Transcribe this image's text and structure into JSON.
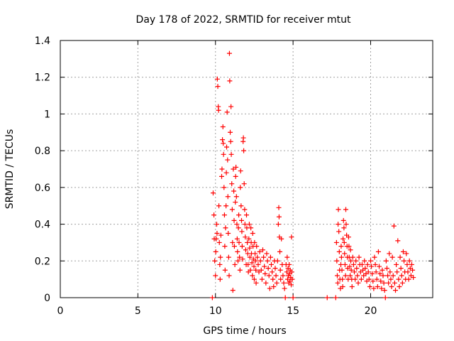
{
  "chart_data": {
    "type": "scatter",
    "title": "Day 178 of 2022, SRMTID for receiver mtut",
    "xlabel": "GPS time / hours",
    "ylabel": "SRMTID / TECUs",
    "xlim": [
      0,
      24
    ],
    "ylim": [
      0,
      1.4
    ],
    "xticks": [
      0,
      5,
      10,
      15,
      20
    ],
    "xtick_labels": [
      "0",
      "5",
      "10",
      "15",
      "20"
    ],
    "yticks": [
      0,
      0.2,
      0.4,
      0.6,
      0.8,
      1.0,
      1.2,
      1.4
    ],
    "ytick_labels": [
      "0",
      "0.2",
      "0.4",
      "0.6",
      "0.8",
      "1",
      "1.2",
      "1.4"
    ],
    "grid": true,
    "marker": "plus",
    "color": "#ff0000",
    "series": [
      {
        "name": "SRMTID",
        "points": [
          [
            9.8,
            0.0
          ],
          [
            9.85,
            0.57
          ],
          [
            9.9,
            0.45
          ],
          [
            9.92,
            0.32
          ],
          [
            9.95,
            0.2
          ],
          [
            10.0,
            0.12
          ],
          [
            10.02,
            0.25
          ],
          [
            10.05,
            0.32
          ],
          [
            10.08,
            0.4
          ],
          [
            10.1,
            0.35
          ],
          [
            10.12,
            1.19
          ],
          [
            10.15,
            1.15
          ],
          [
            10.18,
            1.04
          ],
          [
            10.2,
            1.02
          ],
          [
            10.22,
            0.5
          ],
          [
            10.25,
            0.3
          ],
          [
            10.28,
            0.18
          ],
          [
            10.3,
            0.1
          ],
          [
            10.32,
            0.22
          ],
          [
            10.35,
            0.34
          ],
          [
            10.4,
            0.66
          ],
          [
            10.42,
            0.7
          ],
          [
            10.45,
            0.86
          ],
          [
            10.48,
            0.93
          ],
          [
            10.5,
            0.84
          ],
          [
            10.52,
            0.78
          ],
          [
            10.55,
            0.6
          ],
          [
            10.58,
            0.45
          ],
          [
            10.6,
            0.28
          ],
          [
            10.62,
            0.15
          ],
          [
            10.65,
            0.38
          ],
          [
            10.68,
            0.5
          ],
          [
            10.7,
            0.68
          ],
          [
            10.72,
            0.82
          ],
          [
            10.75,
            1.01
          ],
          [
            10.78,
            0.75
          ],
          [
            10.8,
            0.55
          ],
          [
            10.82,
            0.35
          ],
          [
            10.85,
            0.22
          ],
          [
            10.88,
            0.12
          ],
          [
            10.9,
            1.33
          ],
          [
            10.92,
            1.18
          ],
          [
            10.95,
            0.9
          ],
          [
            10.98,
            0.85
          ],
          [
            11.0,
            1.04
          ],
          [
            11.02,
            0.78
          ],
          [
            11.05,
            0.62
          ],
          [
            11.08,
            0.48
          ],
          [
            11.1,
            0.3
          ],
          [
            11.12,
            0.04
          ],
          [
            11.15,
            0.7
          ],
          [
            11.18,
            0.58
          ],
          [
            11.2,
            0.42
          ],
          [
            11.22,
            0.28
          ],
          [
            11.25,
            0.18
          ],
          [
            11.28,
            0.52
          ],
          [
            11.3,
            0.66
          ],
          [
            11.32,
            0.71
          ],
          [
            11.35,
            0.55
          ],
          [
            11.38,
            0.4
          ],
          [
            11.4,
            0.32
          ],
          [
            11.42,
            0.25
          ],
          [
            11.45,
            0.2
          ],
          [
            11.48,
            0.38
          ],
          [
            11.5,
            0.45
          ],
          [
            11.52,
            0.3
          ],
          [
            11.55,
            0.22
          ],
          [
            11.58,
            0.15
          ],
          [
            11.6,
            0.6
          ],
          [
            11.62,
            0.69
          ],
          [
            11.65,
            0.5
          ],
          [
            11.68,
            0.42
          ],
          [
            11.7,
            0.36
          ],
          [
            11.72,
            0.28
          ],
          [
            11.75,
            0.21
          ],
          [
            11.78,
            0.85
          ],
          [
            11.8,
            0.87
          ],
          [
            11.82,
            0.8
          ],
          [
            11.85,
            0.62
          ],
          [
            11.88,
            0.48
          ],
          [
            11.9,
            0.4
          ],
          [
            11.92,
            0.33
          ],
          [
            11.95,
            0.26
          ],
          [
            11.98,
            0.18
          ],
          [
            12.0,
            0.45
          ],
          [
            12.02,
            0.38
          ],
          [
            12.05,
            0.3
          ],
          [
            12.08,
            0.24
          ],
          [
            12.1,
            0.18
          ],
          [
            12.12,
            0.14
          ],
          [
            12.15,
            0.32
          ],
          [
            12.18,
            0.4
          ],
          [
            12.2,
            0.27
          ],
          [
            12.22,
            0.22
          ],
          [
            12.25,
            0.15
          ],
          [
            12.28,
            0.38
          ],
          [
            12.3,
            0.3
          ],
          [
            12.32,
            0.24
          ],
          [
            12.35,
            0.19
          ],
          [
            12.38,
            0.12
          ],
          [
            12.4,
            0.35
          ],
          [
            12.42,
            0.28
          ],
          [
            12.45,
            0.21
          ],
          [
            12.48,
            0.17
          ],
          [
            12.5,
            0.1
          ],
          [
            12.52,
            0.3
          ],
          [
            12.55,
            0.24
          ],
          [
            12.58,
            0.2
          ],
          [
            12.6,
            0.15
          ],
          [
            12.62,
            0.08
          ],
          [
            12.65,
            0.28
          ],
          [
            12.7,
            0.22
          ],
          [
            12.75,
            0.18
          ],
          [
            12.8,
            0.14
          ],
          [
            12.85,
            0.25
          ],
          [
            12.9,
            0.2
          ],
          [
            12.95,
            0.15
          ],
          [
            13.0,
            0.1
          ],
          [
            13.05,
            0.26
          ],
          [
            13.1,
            0.22
          ],
          [
            13.15,
            0.17
          ],
          [
            13.2,
            0.13
          ],
          [
            13.25,
            0.08
          ],
          [
            13.3,
            0.24
          ],
          [
            13.35,
            0.2
          ],
          [
            13.4,
            0.16
          ],
          [
            13.45,
            0.12
          ],
          [
            13.5,
            0.05
          ],
          [
            13.55,
            0.22
          ],
          [
            13.6,
            0.18
          ],
          [
            13.65,
            0.14
          ],
          [
            13.7,
            0.1
          ],
          [
            13.75,
            0.06
          ],
          [
            13.8,
            0.2
          ],
          [
            13.85,
            0.16
          ],
          [
            13.9,
            0.12
          ],
          [
            13.95,
            0.08
          ],
          [
            14.0,
            0.2
          ],
          [
            14.05,
            0.4
          ],
          [
            14.08,
            0.49
          ],
          [
            14.1,
            0.44
          ],
          [
            14.12,
            0.33
          ],
          [
            14.15,
            0.25
          ],
          [
            14.18,
            0.15
          ],
          [
            14.2,
            0.1
          ],
          [
            14.25,
            0.32
          ],
          [
            14.3,
            0.18
          ],
          [
            14.35,
            0.12
          ],
          [
            14.4,
            0.08
          ],
          [
            14.45,
            0.05
          ],
          [
            14.5,
            0.0
          ],
          [
            14.55,
            0.18
          ],
          [
            14.6,
            0.14
          ],
          [
            14.62,
            0.22
          ],
          [
            14.65,
            0.1
          ],
          [
            14.68,
            0.16
          ],
          [
            14.7,
            0.12
          ],
          [
            14.72,
            0.08
          ],
          [
            14.75,
            0.18
          ],
          [
            14.78,
            0.13
          ],
          [
            14.8,
            0.09
          ],
          [
            14.82,
            0.15
          ],
          [
            14.85,
            0.11
          ],
          [
            14.88,
            0.07
          ],
          [
            14.9,
            0.33
          ],
          [
            14.92,
            0.14
          ],
          [
            14.95,
            0.1
          ],
          [
            15.0,
            0.0
          ],
          [
            17.2,
            0.0
          ],
          [
            17.75,
            0.0
          ],
          [
            17.8,
            0.3
          ],
          [
            17.82,
            0.2
          ],
          [
            17.85,
            0.12
          ],
          [
            17.88,
            0.08
          ],
          [
            17.9,
            0.4
          ],
          [
            17.92,
            0.48
          ],
          [
            17.95,
            0.36
          ],
          [
            17.98,
            0.25
          ],
          [
            18.0,
            0.15
          ],
          [
            18.02,
            0.1
          ],
          [
            18.05,
            0.05
          ],
          [
            18.08,
            0.18
          ],
          [
            18.1,
            0.28
          ],
          [
            18.12,
            0.22
          ],
          [
            18.15,
            0.15
          ],
          [
            18.18,
            0.1
          ],
          [
            18.2,
            0.06
          ],
          [
            18.22,
            0.32
          ],
          [
            18.25,
            0.42
          ],
          [
            18.28,
            0.38
          ],
          [
            18.3,
            0.3
          ],
          [
            18.32,
            0.24
          ],
          [
            18.35,
            0.18
          ],
          [
            18.38,
            0.12
          ],
          [
            18.4,
            0.48
          ],
          [
            18.42,
            0.4
          ],
          [
            18.45,
            0.34
          ],
          [
            18.48,
            0.28
          ],
          [
            18.5,
            0.22
          ],
          [
            18.52,
            0.16
          ],
          [
            18.55,
            0.1
          ],
          [
            18.58,
            0.33
          ],
          [
            18.6,
            0.28
          ],
          [
            18.62,
            0.22
          ],
          [
            18.65,
            0.17
          ],
          [
            18.68,
            0.12
          ],
          [
            18.7,
            0.26
          ],
          [
            18.72,
            0.2
          ],
          [
            18.75,
            0.15
          ],
          [
            18.78,
            0.1
          ],
          [
            18.8,
            0.06
          ],
          [
            18.85,
            0.22
          ],
          [
            18.9,
            0.18
          ],
          [
            18.95,
            0.14
          ],
          [
            19.0,
            0.1
          ],
          [
            19.05,
            0.2
          ],
          [
            19.1,
            0.16
          ],
          [
            19.15,
            0.12
          ],
          [
            19.2,
            0.08
          ],
          [
            19.25,
            0.22
          ],
          [
            19.3,
            0.18
          ],
          [
            19.35,
            0.14
          ],
          [
            19.4,
            0.1
          ],
          [
            19.45,
            0.18
          ],
          [
            19.5,
            0.15
          ],
          [
            19.55,
            0.12
          ],
          [
            19.6,
            0.2
          ],
          [
            19.65,
            0.16
          ],
          [
            19.7,
            0.13
          ],
          [
            19.75,
            0.09
          ],
          [
            19.8,
            0.18
          ],
          [
            19.85,
            0.14
          ],
          [
            19.9,
            0.1
          ],
          [
            19.95,
            0.06
          ],
          [
            20.0,
            0.2
          ],
          [
            20.05,
            0.17
          ],
          [
            20.1,
            0.13
          ],
          [
            20.15,
            0.09
          ],
          [
            20.2,
            0.05
          ],
          [
            20.25,
            0.22
          ],
          [
            20.3,
            0.18
          ],
          [
            20.35,
            0.14
          ],
          [
            20.4,
            0.1
          ],
          [
            20.45,
            0.06
          ],
          [
            20.5,
            0.25
          ],
          [
            20.55,
            0.17
          ],
          [
            20.6,
            0.13
          ],
          [
            20.65,
            0.09
          ],
          [
            20.7,
            0.05
          ],
          [
            20.75,
            0.15
          ],
          [
            20.8,
            0.12
          ],
          [
            20.85,
            0.08
          ],
          [
            20.9,
            0.04
          ],
          [
            20.95,
            0.0
          ],
          [
            21.0,
            0.2
          ],
          [
            21.05,
            0.16
          ],
          [
            21.1,
            0.12
          ],
          [
            21.15,
            0.08
          ],
          [
            21.2,
            0.24
          ],
          [
            21.25,
            0.14
          ],
          [
            21.3,
            0.1
          ],
          [
            21.35,
            0.06
          ],
          [
            21.4,
            0.22
          ],
          [
            21.45,
            0.12
          ],
          [
            21.5,
            0.39
          ],
          [
            21.55,
            0.08
          ],
          [
            21.6,
            0.04
          ],
          [
            21.65,
            0.18
          ],
          [
            21.7,
            0.14
          ],
          [
            21.75,
            0.31
          ],
          [
            21.8,
            0.1
          ],
          [
            21.85,
            0.06
          ],
          [
            21.9,
            0.22
          ],
          [
            21.95,
            0.16
          ],
          [
            22.0,
            0.12
          ],
          [
            22.05,
            0.08
          ],
          [
            22.1,
            0.25
          ],
          [
            22.15,
            0.2
          ],
          [
            22.2,
            0.14
          ],
          [
            22.25,
            0.1
          ],
          [
            22.3,
            0.24
          ],
          [
            22.35,
            0.18
          ],
          [
            22.4,
            0.14
          ],
          [
            22.45,
            0.1
          ],
          [
            22.5,
            0.2
          ],
          [
            22.55,
            0.16
          ],
          [
            22.6,
            0.12
          ],
          [
            22.65,
            0.18
          ],
          [
            22.7,
            0.15
          ],
          [
            22.75,
            0.11
          ]
        ]
      }
    ]
  }
}
